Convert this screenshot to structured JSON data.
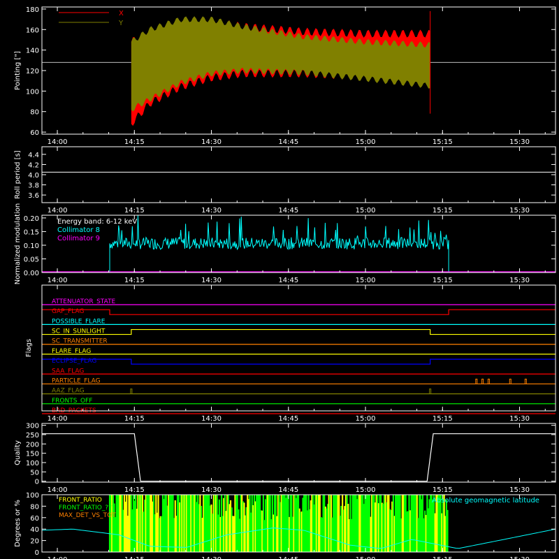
{
  "colors": {
    "background": "#000000",
    "axis": "#ffffff",
    "x": "#ff0000",
    "y": "#808000",
    "collimator8": "#00ffff",
    "collimator9": "#ff00ff",
    "green": "#00ff00",
    "front_ratio": "#ffff00",
    "front_ratio_alt": "#00ff00",
    "max_det": "#ff8000",
    "latitude": "#00ffff"
  },
  "time_axis": {
    "range_min": [
      13.95,
      15.6167
    ],
    "ticks": [
      "14:00",
      "14:15",
      "14:30",
      "14:45",
      "15:00",
      "15:15",
      "15:30"
    ],
    "tick_values_hours": [
      14.0,
      14.25,
      14.5,
      14.75,
      15.0,
      15.25,
      15.5
    ]
  },
  "chart_data": [
    {
      "id": "pointing",
      "type": "area",
      "ylabel": "Pointing [\"]",
      "ylim": [
        58,
        182
      ],
      "yticks": [
        "60",
        "80",
        "100",
        "120",
        "140",
        "160",
        "180"
      ],
      "ytick_values": [
        60,
        80,
        100,
        120,
        140,
        160,
        180
      ],
      "legend": [
        "X",
        "Y"
      ],
      "legend_placement": "top-left",
      "reference_line": 128,
      "active_range_hours": [
        14.24,
        15.21
      ],
      "series": [
        {
          "name": "X",
          "envelope_hours": [
            14.24,
            14.3,
            14.4,
            14.5,
            14.6,
            14.8,
            15.0,
            15.21
          ],
          "upper": [
            148,
            158,
            166,
            168,
            163,
            158,
            156,
            156
          ],
          "lower": [
            68,
            88,
            104,
            113,
            117,
            117,
            114,
            110
          ]
        },
        {
          "name": "Y",
          "envelope_hours": [
            14.24,
            14.3,
            14.4,
            14.5,
            14.6,
            14.8,
            15.0,
            15.21
          ],
          "upper": [
            148,
            160,
            170,
            170,
            163,
            153,
            148,
            145
          ],
          "lower": [
            82,
            92,
            108,
            117,
            120,
            118,
            112,
            105
          ]
        }
      ]
    },
    {
      "id": "roll_period",
      "type": "line",
      "ylabel": "Roll period [s]",
      "ylim": [
        3.45,
        4.55
      ],
      "yticks": [
        "3.6",
        "3.8",
        "4.0",
        "4.2",
        "4.4"
      ],
      "ytick_values": [
        3.6,
        3.8,
        4.0,
        4.2,
        4.4
      ],
      "series": [
        {
          "name": "",
          "x_hours": [
            13.95,
            15.6167
          ],
          "values": [
            4.05,
            4.05
          ]
        }
      ]
    },
    {
      "id": "modulation",
      "type": "line",
      "ylabel": "Normalized modulation",
      "ylim": [
        0.0,
        0.21
      ],
      "yticks": [
        "0.00",
        "0.05",
        "0.10",
        "0.15",
        "0.20"
      ],
      "ytick_values": [
        0.0,
        0.05,
        0.1,
        0.15,
        0.2
      ],
      "legend": [
        "Energy band: 6-12 keV",
        "Collimator 8",
        "Collimator 9"
      ],
      "legend_placement": "top-left",
      "series": [
        {
          "name": "Collimator 8",
          "active_range_hours": [
            14.17,
            15.27
          ],
          "mean": 0.107,
          "spread": 0.022
        },
        {
          "name": "Collimator 9",
          "x_hours": [
            13.95,
            15.6167
          ],
          "values": [
            0.0,
            0.0
          ]
        }
      ]
    },
    {
      "id": "flags",
      "type": "line",
      "ylabel": "Flags",
      "series": [
        {
          "name": "ATTENUATOR_STATE",
          "color": "#ff00ff",
          "steps": []
        },
        {
          "name": "GAP_FLAG",
          "color": "#ff0000",
          "steps": [
            [
              14.17,
              1
            ],
            [
              14.17,
              0
            ],
            [
              15.27,
              0
            ],
            [
              15.27,
              1
            ]
          ]
        },
        {
          "name": "POSSIBLE_FLARE",
          "color": "#00ffff",
          "steps": []
        },
        {
          "name": "SC_IN_SUNLIGHT",
          "color": "#ffff00",
          "steps": [
            [
              14.24,
              0
            ],
            [
              14.24,
              1
            ],
            [
              15.21,
              1
            ],
            [
              15.21,
              0
            ]
          ]
        },
        {
          "name": "SC_TRANSMITTER",
          "color": "#ff8000",
          "steps": []
        },
        {
          "name": "FLARE_FLAG",
          "color": "#ffff00",
          "steps": []
        },
        {
          "name": "ECLIPSE_FLAG",
          "color": "#0000ff",
          "steps": [
            [
              14.24,
              1
            ],
            [
              14.24,
              0
            ],
            [
              15.21,
              0
            ],
            [
              15.21,
              1
            ]
          ]
        },
        {
          "name": "SAA_FLAG",
          "color": "#ff0000",
          "steps": []
        },
        {
          "name": "PARTICLE_FLAG",
          "color": "#ff8000",
          "spikes_hours": [
            15.36,
            15.38,
            15.4,
            15.47,
            15.52
          ]
        },
        {
          "name": "AAZ_FLAG",
          "color": "#808000",
          "spikes_hours": [
            14.24,
            15.21
          ]
        },
        {
          "name": "FRONTS_OFF",
          "color": "#00ff00",
          "steps": []
        },
        {
          "name": "BAD_PACKETS",
          "color": "#ff0000",
          "steps": []
        }
      ]
    },
    {
      "id": "quality",
      "type": "line",
      "ylabel": "Quality",
      "ylim": [
        -5,
        310
      ],
      "yticks": [
        "0",
        "50",
        "100",
        "150",
        "200",
        "250",
        "300"
      ],
      "ytick_values": [
        0,
        50,
        100,
        150,
        200,
        250,
        300
      ],
      "series": [
        {
          "name": "",
          "x_hours": [
            13.95,
            14.25,
            14.27,
            15.2,
            15.22,
            15.6167
          ],
          "values": [
            255,
            255,
            0,
            0,
            255,
            255
          ]
        }
      ]
    },
    {
      "id": "degrees",
      "type": "area",
      "ylabel": "Degrees or %",
      "ylim": [
        0,
        100
      ],
      "yticks": [
        "0",
        "20",
        "40",
        "60",
        "80",
        "100"
      ],
      "ytick_values": [
        0,
        20,
        40,
        60,
        80,
        100
      ],
      "legend": [
        "FRONT_RATIO",
        "FRONT_RATIO_???",
        "MAX_DET_VS_TOT"
      ],
      "legend_placement": "top-left",
      "annotation": "Absolute geomagnetic latitude",
      "series": [
        {
          "name": "FRONT_RATIO",
          "active_range_hours": [
            14.17,
            15.27
          ],
          "values": [
            100
          ]
        },
        {
          "name": "Absolute geomagnetic latitude",
          "x_hours": [
            13.95,
            14.05,
            14.2,
            14.3,
            14.42,
            14.55,
            14.7,
            14.8,
            14.95,
            15.05,
            15.15,
            15.3,
            15.45,
            15.6167
          ],
          "values": [
            38,
            40,
            30,
            10,
            8,
            30,
            42,
            38,
            12,
            6,
            22,
            6,
            22,
            40
          ]
        }
      ]
    }
  ]
}
